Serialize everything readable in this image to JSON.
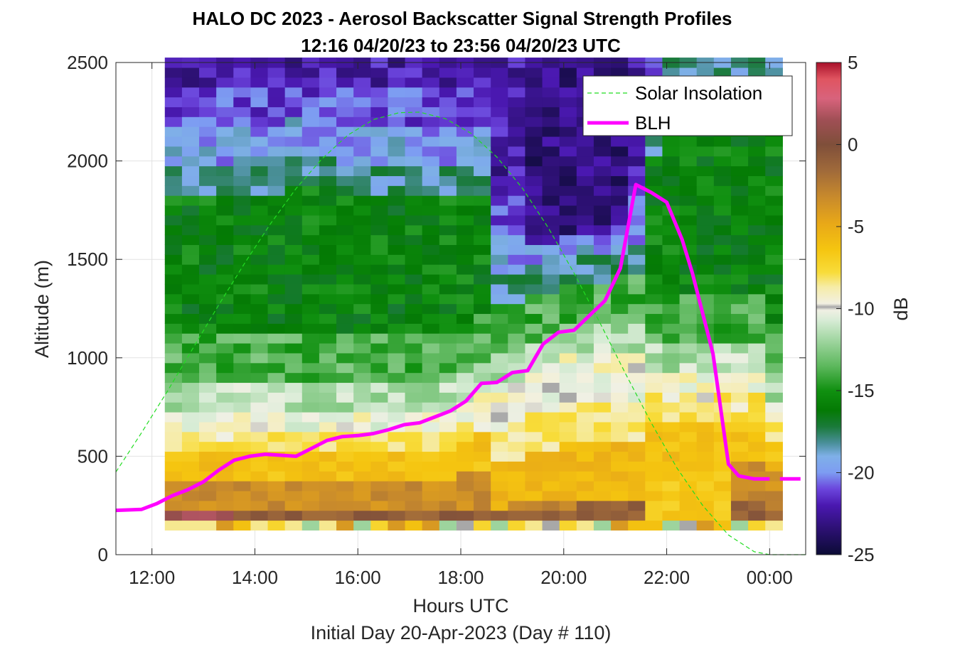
{
  "chart_data": {
    "type": "heatmap",
    "title": "HALO DC 2023 - Aerosol Backscatter Signal Strength Profiles",
    "subtitle": "12:16 04/20/23 to 23:56 04/20/23  UTC",
    "xlabel": "Hours UTC",
    "xlabel2": "Initial Day 20-Apr-2023 (Day # 110)",
    "ylabel": "Altitude (m)",
    "xlim": [
      11.3,
      24.7
    ],
    "ylim": [
      0,
      2500
    ],
    "x_ticks": [
      12,
      14,
      16,
      18,
      20,
      22,
      24
    ],
    "x_tick_labels": [
      "12:00",
      "14:00",
      "16:00",
      "18:00",
      "20:00",
      "22:00",
      "00:00"
    ],
    "y_ticks": [
      0,
      500,
      1000,
      1500,
      2000,
      2500
    ],
    "y_tick_labels": [
      "0",
      "500",
      "1000",
      "1500",
      "2000",
      "2500"
    ],
    "grid": true,
    "legend_position": "top-right",
    "colorbar": {
      "label": "dB",
      "range": [
        -25,
        5
      ],
      "ticks": [
        5,
        0,
        -5,
        -10,
        -15,
        -20,
        -25
      ],
      "tick_labels": [
        "5",
        "0",
        "-5",
        "-10",
        "-15",
        "-20",
        "-25"
      ],
      "stops": [
        {
          "value": -25,
          "color": "#0b0b35"
        },
        {
          "value": -23.5,
          "color": "#2b1070"
        },
        {
          "value": -22,
          "color": "#4a18b0"
        },
        {
          "value": -21,
          "color": "#6b45dc"
        },
        {
          "value": -20,
          "color": "#7d9cf2"
        },
        {
          "value": -19,
          "color": "#7fb0e8"
        },
        {
          "value": -18.2,
          "color": "#4a8f9a"
        },
        {
          "value": -17.2,
          "color": "#1a7a3a"
        },
        {
          "value": -16.2,
          "color": "#047a04"
        },
        {
          "value": -15,
          "color": "#109010"
        },
        {
          "value": -13.5,
          "color": "#5db85d"
        },
        {
          "value": -11.8,
          "color": "#a6d8a6"
        },
        {
          "value": -10.7,
          "color": "#d8ecd6"
        },
        {
          "value": -10.1,
          "color": "#f0f0e4"
        },
        {
          "value": -9.9,
          "color": "#a8a8a8"
        },
        {
          "value": -9.7,
          "color": "#f2f0e2"
        },
        {
          "value": -8.7,
          "color": "#f6eca8"
        },
        {
          "value": -7.8,
          "color": "#f8dc3a"
        },
        {
          "value": -6.4,
          "color": "#f5c510"
        },
        {
          "value": -4.8,
          "color": "#e8a818"
        },
        {
          "value": -3.2,
          "color": "#c88a2c"
        },
        {
          "value": -1.6,
          "color": "#a06a3a"
        },
        {
          "value": 0,
          "color": "#7f4f3a"
        },
        {
          "value": 1.5,
          "color": "#a04f55"
        },
        {
          "value": 2.8,
          "color": "#d8637c"
        },
        {
          "value": 4,
          "color": "#e05460"
        },
        {
          "value": 5,
          "color": "#a8102a"
        }
      ]
    },
    "heatmap": {
      "x_start": 12.25,
      "x_step": 0.3333,
      "columns": 36,
      "y_start": 125,
      "y_step": 50,
      "rows": 48,
      "values_db": "generated per cell (-25 to 5 dB) approximating the observed profiles"
    },
    "series": [
      {
        "name": "Solar Insolation",
        "style": "dashed",
        "color": "#22dd22",
        "x": [
          11.3,
          11.8,
          12.3,
          12.8,
          13.3,
          13.8,
          14.3,
          14.8,
          15.3,
          15.8,
          16.3,
          16.8,
          17.2,
          17.7,
          18.2,
          18.7,
          19.2,
          19.7,
          20.2,
          20.7,
          21.2,
          21.7,
          22.2,
          22.7,
          23.2,
          23.7,
          24.0,
          24.2,
          24.7
        ],
        "y": [
          420,
          620,
          830,
          1050,
          1270,
          1480,
          1680,
          1860,
          2010,
          2130,
          2210,
          2245,
          2248,
          2215,
          2140,
          2020,
          1860,
          1660,
          1430,
          1180,
          920,
          670,
          440,
          250,
          100,
          15,
          0,
          0,
          0
        ]
      },
      {
        "name": "BLH",
        "style": "solid",
        "color": "#ff00ff",
        "x": [
          11.3,
          11.8,
          12.1,
          12.4,
          12.7,
          13.0,
          13.3,
          13.6,
          13.9,
          14.2,
          14.5,
          14.8,
          15.1,
          15.4,
          15.7,
          16.0,
          16.3,
          16.6,
          16.9,
          17.2,
          17.5,
          17.8,
          18.1,
          18.4,
          18.7,
          19.0,
          19.3,
          19.6,
          19.9,
          20.2,
          20.5,
          20.8,
          21.1,
          21.4,
          21.7,
          22.0,
          22.3,
          22.5,
          22.9,
          23.2,
          23.4,
          23.7,
          24.0
        ],
        "y": [
          225,
          230,
          260,
          300,
          330,
          370,
          430,
          480,
          500,
          510,
          505,
          500,
          540,
          580,
          600,
          605,
          615,
          635,
          660,
          670,
          700,
          730,
          780,
          870,
          875,
          925,
          935,
          1070,
          1130,
          1140,
          1215,
          1290,
          1455,
          1880,
          1840,
          1790,
          1600,
          1430,
          1020,
          460,
          400,
          385,
          385
        ]
      }
    ]
  }
}
